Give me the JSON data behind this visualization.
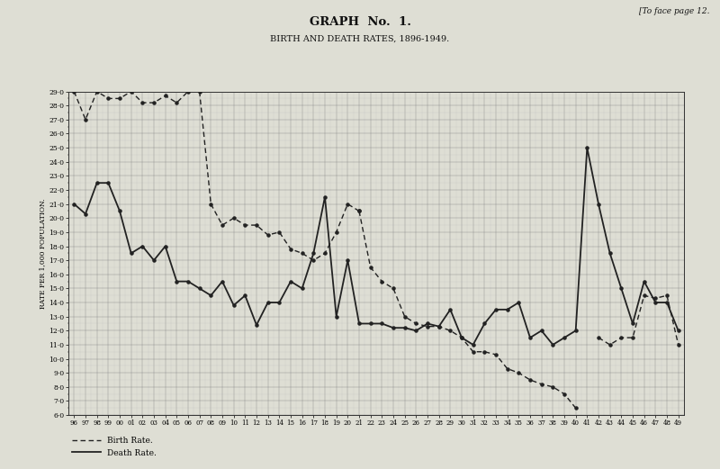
{
  "title1": "GRAPH  No.  1.",
  "title2": "BIRTH AND DEATH RATES, 1896-1949.",
  "top_right_text": "[To face page 12.",
  "ylabel": "RATE PER 1,000 POPULATION.",
  "ylim_min": 6.0,
  "ylim_max": 29.0,
  "background_color": "#deded4",
  "line_color": "#222222",
  "birth_rate_years": [
    1896,
    1897,
    1898,
    1899,
    1900,
    1901,
    1902,
    1903,
    1904,
    1905,
    1906,
    1907
  ],
  "birth_rate_vals": [
    29.0,
    27.0,
    29.0,
    28.5,
    28.5,
    29.0,
    28.2,
    28.2,
    28.7,
    28.2,
    29.0,
    29.0
  ],
  "birth_rate_drop_years": [
    1907,
    1908
  ],
  "birth_rate_drop_vals": [
    29.0,
    21.0
  ],
  "birth_rate2_years": [
    1908,
    1909,
    1910,
    1911,
    1912,
    1913,
    1914,
    1915,
    1916,
    1917,
    1918,
    1919,
    1920,
    1921
  ],
  "birth_rate2_vals": [
    21.0,
    19.5,
    20.0,
    19.5,
    19.5,
    18.8,
    19.0,
    17.8,
    17.5,
    17.0,
    17.5,
    19.0,
    21.0,
    20.5
  ],
  "birth_rate3_years": [
    1921,
    1922,
    1923,
    1924,
    1925,
    1926,
    1927,
    1928,
    1929,
    1930,
    1931,
    1932,
    1933,
    1934,
    1935,
    1936,
    1937,
    1938,
    1939,
    1940
  ],
  "birth_rate3_vals": [
    20.5,
    16.5,
    15.5,
    15.0,
    13.0,
    12.5,
    12.3,
    12.3,
    12.0,
    11.5,
    10.5,
    10.5,
    10.3,
    9.3,
    9.0,
    8.5,
    8.2,
    8.0,
    7.5,
    6.5
  ],
  "birth_rate4_years": [
    1942,
    1943,
    1944,
    1945,
    1946,
    1947,
    1948,
    1949
  ],
  "birth_rate4_vals": [
    11.5,
    11.0,
    11.5,
    11.5,
    14.5,
    14.3,
    14.5,
    11.0
  ],
  "death_rate_years": [
    1896,
    1897,
    1898,
    1899,
    1900,
    1901,
    1902,
    1903,
    1904,
    1905,
    1906,
    1907,
    1908,
    1909,
    1910,
    1911,
    1912,
    1913,
    1914,
    1915,
    1916,
    1917,
    1918,
    1919,
    1920,
    1921,
    1922,
    1923,
    1924,
    1925,
    1926,
    1927,
    1928,
    1929,
    1930,
    1931,
    1932,
    1933,
    1934,
    1935,
    1936,
    1937,
    1938,
    1939,
    1940,
    1941,
    1942,
    1943,
    1944,
    1945,
    1946,
    1947,
    1948,
    1949
  ],
  "death_rate_vals": [
    21.0,
    20.3,
    22.5,
    22.5,
    20.5,
    17.5,
    18.0,
    17.0,
    18.0,
    15.5,
    15.5,
    15.0,
    14.5,
    15.5,
    13.8,
    14.5,
    12.4,
    14.0,
    14.0,
    15.5,
    15.0,
    17.5,
    21.5,
    13.0,
    17.0,
    12.5,
    12.5,
    12.5,
    12.2,
    12.2,
    12.0,
    12.5,
    12.3,
    13.5,
    11.5,
    11.0,
    12.5,
    13.5,
    13.5,
    14.0,
    11.5,
    12.0,
    11.0,
    11.5,
    12.0,
    25.0,
    21.0,
    17.5,
    15.0,
    12.5,
    15.5,
    14.0,
    14.0,
    12.0
  ],
  "legend_birth": "Birth Rate.",
  "legend_death": "Death Rate."
}
